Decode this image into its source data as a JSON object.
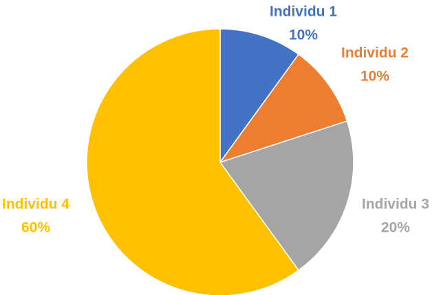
{
  "chart_data": {
    "type": "pie",
    "categories": [
      "Individu 1",
      "Individu 2",
      "Individu 3",
      "Individu 4"
    ],
    "values": [
      10,
      10,
      20,
      60
    ],
    "percent_labels": [
      "10%",
      "10%",
      "20%",
      "60%"
    ],
    "colors": [
      "#4472C4",
      "#ED7D31",
      "#A5A5A5",
      "#FFC000"
    ],
    "start_angle_deg": 0,
    "direction": "clockwise",
    "labels": "outside"
  }
}
